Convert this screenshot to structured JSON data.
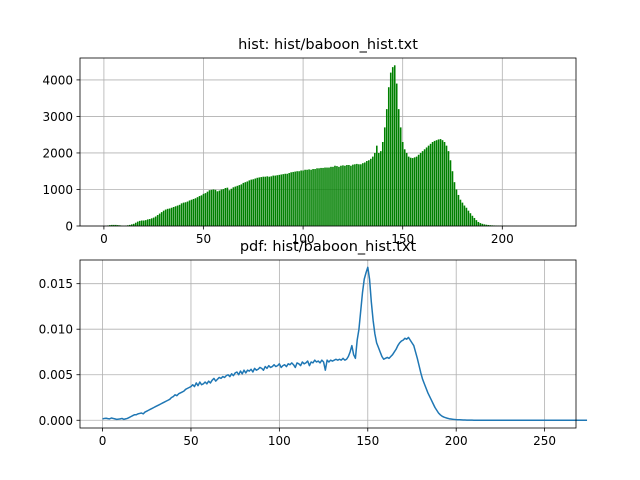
{
  "chart_data": [
    {
      "type": "bar",
      "title": "hist: hist/baboon_hist.txt",
      "xlabel": "",
      "ylabel": "",
      "xlim": [
        -12,
        237
      ],
      "ylim": [
        0,
        4600
      ],
      "x_ticks": [
        0,
        50,
        100,
        150,
        200
      ],
      "y_ticks": [
        0,
        1000,
        2000,
        3000,
        4000
      ],
      "grid": true,
      "bar_color": "#008000",
      "x_start": 0,
      "x_step": 1,
      "values": [
        0,
        0,
        15,
        25,
        30,
        30,
        30,
        25,
        20,
        10,
        5,
        10,
        20,
        30,
        45,
        60,
        90,
        120,
        140,
        150,
        150,
        160,
        180,
        190,
        210,
        230,
        260,
        300,
        340,
        380,
        420,
        450,
        470,
        480,
        500,
        520,
        540,
        560,
        580,
        620,
        640,
        650,
        670,
        700,
        720,
        740,
        760,
        790,
        820,
        840,
        880,
        900,
        940,
        980,
        990,
        1000,
        990,
        950,
        970,
        1000,
        1010,
        1040,
        1050,
        980,
        1020,
        1060,
        1080,
        1100,
        1120,
        1140,
        1180,
        1200,
        1220,
        1250,
        1270,
        1280,
        1300,
        1320,
        1330,
        1340,
        1350,
        1350,
        1360,
        1350,
        1360,
        1380,
        1380,
        1390,
        1400,
        1410,
        1420,
        1430,
        1430,
        1450,
        1470,
        1480,
        1490,
        1500,
        1500,
        1520,
        1520,
        1540,
        1540,
        1550,
        1540,
        1560,
        1560,
        1580,
        1580,
        1590,
        1590,
        1600,
        1600,
        1600,
        1620,
        1620,
        1650,
        1640,
        1620,
        1650,
        1660,
        1650,
        1670,
        1670,
        1650,
        1680,
        1690,
        1700,
        1690,
        1690,
        1720,
        1740,
        1780,
        1800,
        1840,
        1900,
        2000,
        2200,
        2000,
        2050,
        2300,
        2700,
        3200,
        3800,
        4200,
        4350,
        4400,
        3900,
        3200,
        2700,
        2300,
        2100,
        2000,
        1900,
        1870,
        1860,
        1880,
        1900,
        1950,
        2000,
        2050,
        2100,
        2150,
        2200,
        2250,
        2300,
        2330,
        2350,
        2370,
        2380,
        2350,
        2300,
        2200,
        2050,
        1800,
        1500,
        1200,
        1000,
        850,
        720,
        640,
        560,
        500,
        420,
        350,
        280,
        220,
        160,
        110,
        80,
        60,
        45,
        35,
        28,
        22,
        18,
        15,
        12,
        10,
        8,
        7,
        6,
        5,
        4,
        3,
        3,
        2,
        2,
        2,
        1,
        1,
        1,
        1,
        1,
        1,
        1,
        0,
        0,
        0,
        0,
        0,
        0,
        0,
        0,
        0,
        0,
        0,
        0,
        0,
        0,
        0,
        0,
        0,
        0,
        0,
        0,
        0,
        0,
        0,
        0,
        0,
        0,
        0,
        0,
        0,
        0,
        0,
        0,
        0,
        0,
        0,
        0,
        0
      ]
    },
    {
      "type": "line",
      "title": "pdf: hist/baboon_hist.txt",
      "xlabel": "",
      "ylabel": "",
      "xlim": [
        -12.75,
        267.75
      ],
      "ylim": [
        -0.00085,
        0.0176
      ],
      "x_ticks": [
        0,
        50,
        100,
        150,
        200,
        250
      ],
      "y_ticks": [
        "0.000",
        "0.005",
        "0.010",
        "0.015"
      ],
      "grid": true,
      "line_color": "#1f77b4",
      "x_start": 0,
      "x_step": 1,
      "values": [
        0.00015,
        0.0002,
        0.00022,
        0.00018,
        0.00015,
        0.00025,
        0.0002,
        0.00015,
        0.0001,
        0.00012,
        0.00015,
        0.0002,
        0.0001,
        0.00015,
        0.0002,
        0.0003,
        0.0004,
        0.0005,
        0.0006,
        0.0006,
        0.0007,
        0.00075,
        0.0008,
        0.0007,
        0.0009,
        0.001,
        0.0011,
        0.0012,
        0.0013,
        0.0014,
        0.0015,
        0.0016,
        0.0017,
        0.0018,
        0.0019,
        0.002,
        0.0021,
        0.0022,
        0.0023,
        0.0025,
        0.0026,
        0.0028,
        0.0027,
        0.0029,
        0.003,
        0.0031,
        0.0032,
        0.0034,
        0.0035,
        0.0036,
        0.0037,
        0.0039,
        0.0037,
        0.0041,
        0.0038,
        0.0042,
        0.0039,
        0.004,
        0.0042,
        0.004,
        0.0043,
        0.0041,
        0.0044,
        0.0046,
        0.0043,
        0.0045,
        0.0047,
        0.0046,
        0.0048,
        0.0047,
        0.0049,
        0.005,
        0.0048,
        0.0051,
        0.0049,
        0.0052,
        0.0053,
        0.005,
        0.0054,
        0.0051,
        0.0055,
        0.0052,
        0.0055,
        0.0054,
        0.0056,
        0.0053,
        0.0057,
        0.0055,
        0.0056,
        0.0058,
        0.0057,
        0.0055,
        0.0059,
        0.0057,
        0.006,
        0.0058,
        0.0059,
        0.0061,
        0.0059,
        0.006,
        0.0062,
        0.0058,
        0.006,
        0.0061,
        0.0059,
        0.0062,
        0.0061,
        0.0063,
        0.0061,
        0.0058,
        0.0063,
        0.0062,
        0.006,
        0.0064,
        0.0062,
        0.0063,
        0.0065,
        0.006,
        0.0064,
        0.0063,
        0.0066,
        0.0064,
        0.0065,
        0.0063,
        0.0066,
        0.0064,
        0.0055,
        0.0066,
        0.0064,
        0.0066,
        0.0065,
        0.0066,
        0.0067,
        0.0066,
        0.0067,
        0.0066,
        0.0068,
        0.0066,
        0.0067,
        0.007,
        0.0075,
        0.0082,
        0.0072,
        0.0068,
        0.0088,
        0.01,
        0.012,
        0.014,
        0.0155,
        0.0162,
        0.0168,
        0.0155,
        0.013,
        0.011,
        0.0095,
        0.0085,
        0.008,
        0.0075,
        0.007,
        0.0067,
        0.0068,
        0.0069,
        0.0068,
        0.007,
        0.0072,
        0.0075,
        0.0078,
        0.0082,
        0.0085,
        0.0087,
        0.0088,
        0.009,
        0.0089,
        0.0091,
        0.0088,
        0.0085,
        0.0082,
        0.0075,
        0.0068,
        0.006,
        0.0052,
        0.0045,
        0.004,
        0.0035,
        0.003,
        0.0026,
        0.0022,
        0.0018,
        0.0014,
        0.0011,
        0.0008,
        0.0006,
        0.00045,
        0.00035,
        0.00028,
        0.00022,
        0.00017,
        0.00014,
        0.00011,
        9e-05,
        7e-05,
        6e-05,
        5e-05,
        4e-05,
        3e-05,
        2.5e-05,
        2e-05,
        1.5e-05,
        1e-05,
        1e-05,
        8e-06,
        6e-06,
        5e-06,
        4e-06,
        3e-06,
        2e-06,
        2e-06,
        1e-06,
        1e-06,
        0,
        0,
        0,
        0,
        0,
        0,
        0,
        0,
        0,
        0,
        0,
        0,
        0,
        0,
        0,
        0,
        0,
        0,
        0,
        0,
        0,
        0,
        0,
        0,
        0,
        0,
        0,
        0,
        0,
        0,
        0,
        0,
        0,
        0,
        0,
        0,
        0,
        0,
        0,
        0,
        0,
        0,
        0,
        0,
        0,
        0,
        0,
        0,
        0,
        0,
        0,
        0,
        0,
        0,
        0,
        0
      ]
    }
  ]
}
